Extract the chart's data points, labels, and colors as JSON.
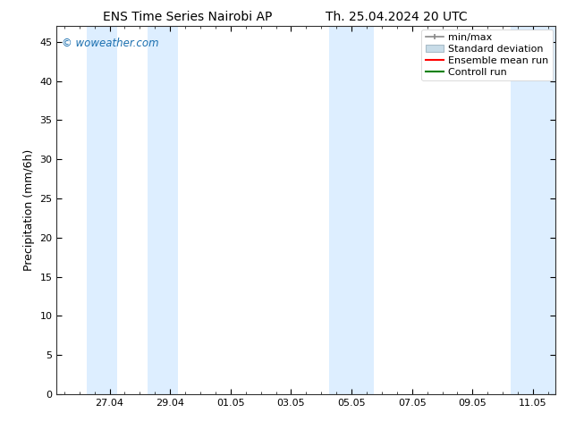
{
  "title_left": "ENS Time Series Nairobi AP",
  "title_right": "Th. 25.04.2024 20 UTC",
  "ylabel": "Precipitation (mm/6h)",
  "watermark": "© woweather.com",
  "ylim": [
    0,
    47
  ],
  "yticks": [
    0,
    5,
    10,
    15,
    20,
    25,
    30,
    35,
    40,
    45
  ],
  "xtick_labels": [
    "27.04",
    "29.04",
    "01.05",
    "03.05",
    "05.05",
    "07.05",
    "09.05",
    "11.05"
  ],
  "xtick_positions": [
    2,
    4,
    6,
    8,
    10,
    12,
    14,
    16
  ],
  "xlim": [
    0.25,
    16.75
  ],
  "shaded_bands": [
    {
      "x_start": 1.25,
      "x_end": 2.25,
      "color": "#ddeeff"
    },
    {
      "x_start": 3.25,
      "x_end": 4.25,
      "color": "#ddeeff"
    },
    {
      "x_start": 9.25,
      "x_end": 10.75,
      "color": "#ddeeff"
    },
    {
      "x_start": 15.25,
      "x_end": 16.75,
      "color": "#ddeeff"
    }
  ],
  "legend_items": [
    {
      "label": "min/max",
      "color": "#a0a0a0"
    },
    {
      "label": "Standard deviation",
      "color": "#c0d8f0"
    },
    {
      "label": "Ensemble mean run",
      "color": "red"
    },
    {
      "label": "Controll run",
      "color": "green"
    }
  ],
  "background_color": "#ffffff",
  "plot_bg_color": "#ffffff",
  "font_color": "#000000",
  "watermark_color": "#1a6faf",
  "title_fontsize": 10,
  "axis_label_fontsize": 9,
  "tick_fontsize": 8,
  "legend_fontsize": 8
}
